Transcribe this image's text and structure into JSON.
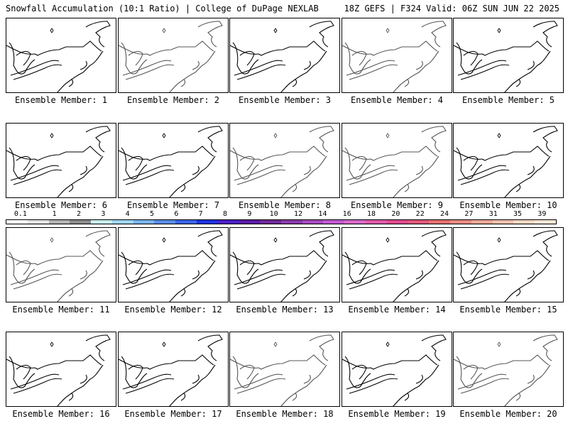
{
  "header": {
    "title_left": "Snowfall Accumulation (10:1 Ratio) | College of DuPage NEXLAB",
    "title_right": "18Z GEFS | F324 Valid: 06Z SUN JUN 22 2025"
  },
  "panels": [
    {
      "label": "Ensemble Member: 1",
      "line_color": "#000000"
    },
    {
      "label": "Ensemble Member: 2",
      "line_color": "#555555"
    },
    {
      "label": "Ensemble Member: 3",
      "line_color": "#000000"
    },
    {
      "label": "Ensemble Member: 4",
      "line_color": "#555555"
    },
    {
      "label": "Ensemble Member: 5",
      "line_color": "#000000"
    },
    {
      "label": "Ensemble Member: 6",
      "line_color": "#000000"
    },
    {
      "label": "Ensemble Member: 7",
      "line_color": "#000000"
    },
    {
      "label": "Ensemble Member: 8",
      "line_color": "#555555"
    },
    {
      "label": "Ensemble Member: 9",
      "line_color": "#555555"
    },
    {
      "label": "Ensemble Member: 10",
      "line_color": "#000000"
    },
    {
      "label": "Ensemble Member: 11",
      "line_color": "#555555"
    },
    {
      "label": "Ensemble Member: 12",
      "line_color": "#000000"
    },
    {
      "label": "Ensemble Member: 13",
      "line_color": "#000000"
    },
    {
      "label": "Ensemble Member: 14",
      "line_color": "#000000"
    },
    {
      "label": "Ensemble Member: 15",
      "line_color": "#000000"
    },
    {
      "label": "Ensemble Member: 16",
      "line_color": "#000000"
    },
    {
      "label": "Ensemble Member: 17",
      "line_color": "#000000"
    },
    {
      "label": "Ensemble Member: 18",
      "line_color": "#555555"
    },
    {
      "label": "Ensemble Member: 19",
      "line_color": "#000000"
    },
    {
      "label": "Ensemble Member: 20",
      "line_color": "#555555"
    }
  ],
  "colorbar": {
    "labels": [
      "0.1",
      "1",
      "2",
      "3",
      "4",
      "5",
      "6",
      "7",
      "8",
      "9",
      "10",
      "12",
      "14",
      "16",
      "18",
      "20",
      "22",
      "24",
      "27",
      "31",
      "35",
      "39"
    ],
    "colors": [
      "#ffffff",
      "#e4e4e4",
      "#b4b4b4",
      "#8c8c8c",
      "#c8f0f0",
      "#9ed6f2",
      "#7ab4ee",
      "#5a8cea",
      "#3a64e6",
      "#1e32e2",
      "#4820c6",
      "#5a1aa6",
      "#6e2a96",
      "#8a3aaa",
      "#a64abe",
      "#c05ad0",
      "#d66ac8",
      "#de5aaa",
      "#e04a8e",
      "#e05878",
      "#e47070",
      "#e88c84",
      "#eca898",
      "#f0c0ae",
      "#f4d8c4",
      "#fae6d6"
    ]
  }
}
